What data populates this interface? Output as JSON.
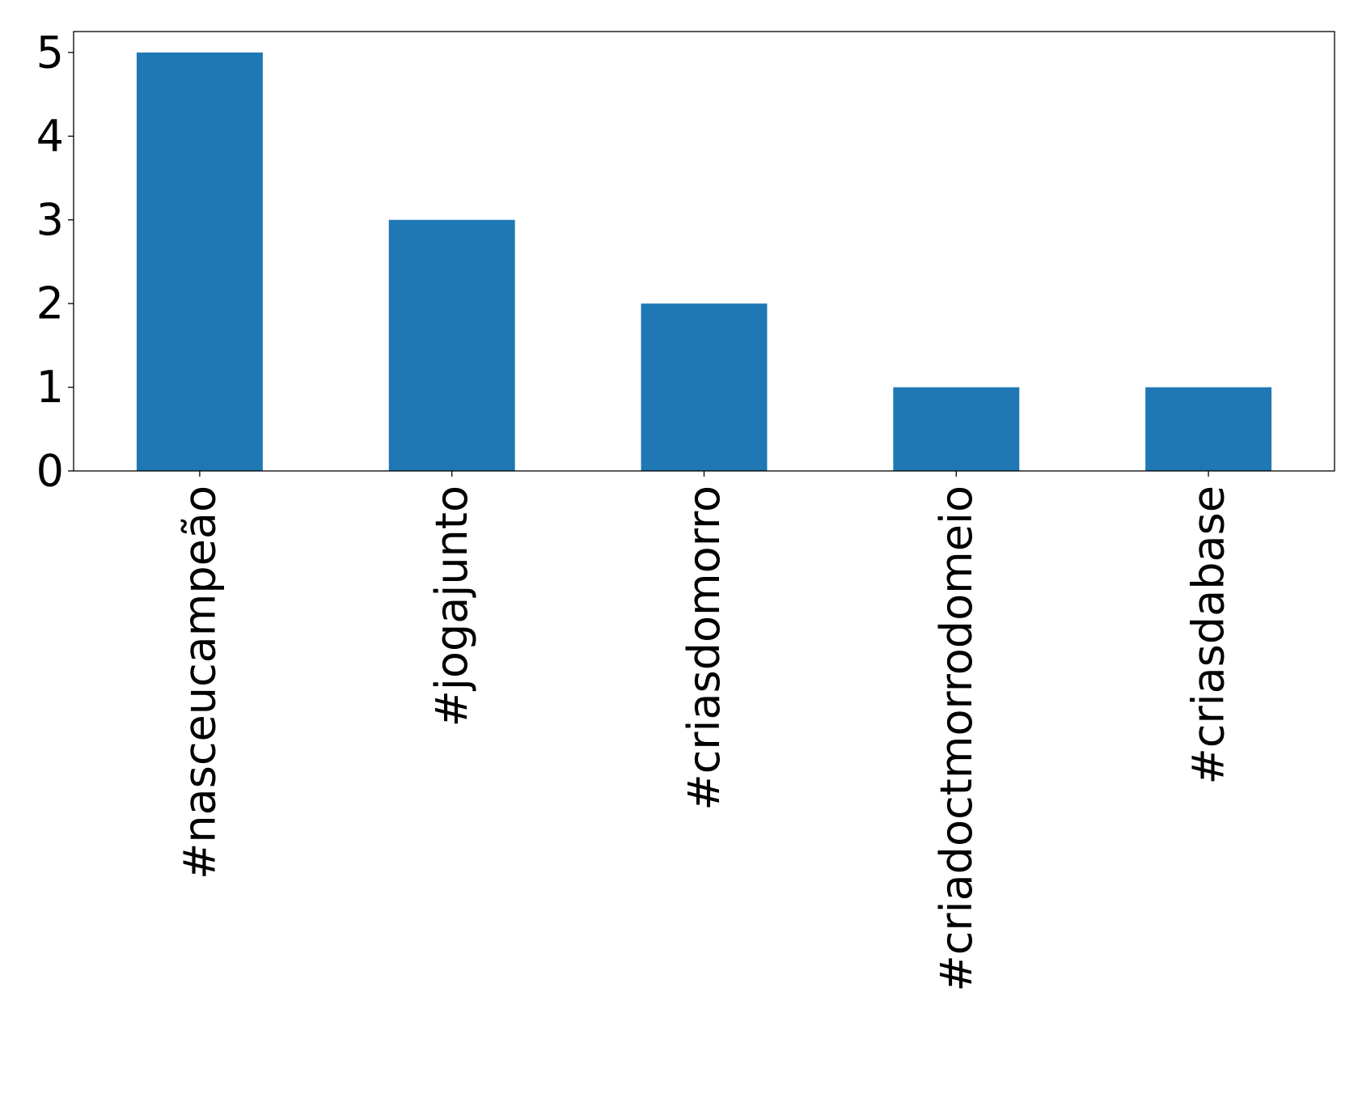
{
  "chart_data": {
    "type": "bar",
    "title": "",
    "xlabel": "",
    "ylabel": "",
    "categories": [
      "#nasceucampeão",
      "#jogajunto",
      "#criasdomorro",
      "#criadoctmorrodomeio",
      "#criasdabase"
    ],
    "values": [
      5,
      3,
      2,
      1,
      1
    ],
    "ylim": [
      0,
      5.25
    ],
    "yticks": [
      0,
      1,
      2,
      3,
      4,
      5
    ],
    "grid": false,
    "legend": "none",
    "bar_color": "#1f77b4",
    "xtick_rotation": "vertical"
  }
}
